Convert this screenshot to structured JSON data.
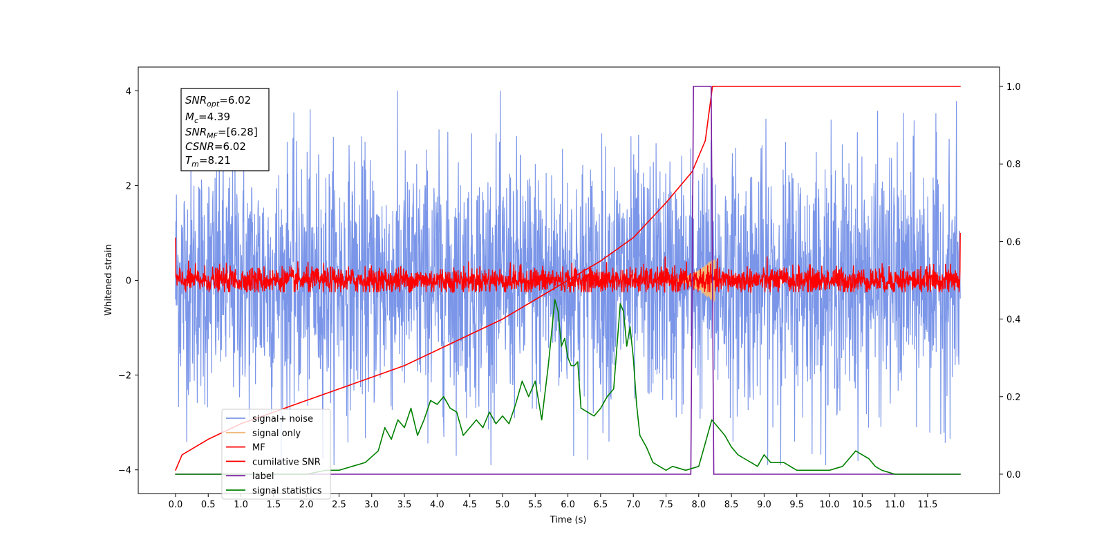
{
  "chart_data": {
    "type": "line",
    "xlabel": "Time (s)",
    "ylabel": "Whitened strain",
    "xlim": [
      -0.57,
      12.6
    ],
    "ylim_left": [
      -4.5,
      4.5
    ],
    "ylim_right": [
      -0.05,
      1.05
    ],
    "x_ticks": [
      "0.0",
      "0.5",
      "1.0",
      "1.5",
      "2.0",
      "2.5",
      "3.0",
      "3.5",
      "4.0",
      "4.5",
      "5.0",
      "5.5",
      "6.0",
      "6.5",
      "7.0",
      "7.5",
      "8.0",
      "8.5",
      "9.0",
      "9.5",
      "10.0",
      "10.5",
      "11.0",
      "11.5"
    ],
    "y_ticks_left": [
      "−4",
      "−2",
      "0",
      "2",
      "4"
    ],
    "y_ticks_right": [
      "0.0",
      "0.2",
      "0.4",
      "0.6",
      "0.8",
      "1.0"
    ],
    "legend_location": "lower-left",
    "annotation": {
      "snr_opt_label": "SNR",
      "snr_opt_sub": "opt",
      "snr_opt_value": "=6.02",
      "mc_label": "M",
      "mc_sub": "c",
      "mc_value": "=4.39",
      "snr_mf_label": "SNR",
      "snr_mf_sub": "MF",
      "snr_mf_value": "=[6.28]",
      "csnr_label": "CSNR",
      "csnr_value": "=6.02",
      "tm_label": "T",
      "tm_sub": "m",
      "tm_value": "=8.21"
    },
    "series": [
      {
        "name": "signal+ noise",
        "color": "#7b96e8",
        "axis": "left",
        "description_amplitude_range": [
          -3.9,
          4.0
        ],
        "x_range": [
          0.0,
          12.0
        ]
      },
      {
        "name": "signal only",
        "color": "#f0b87a",
        "axis": "left",
        "x_range": [
          7.5,
          8.25
        ],
        "peak_amplitude": 0.5
      },
      {
        "name": "MF",
        "color": "#ff0000",
        "axis": "left",
        "x_range": [
          0.0,
          12.0
        ],
        "amplitude_range": [
          -0.3,
          0.6
        ]
      },
      {
        "name": "cumilative SNR",
        "color": "#ff0000",
        "axis": "right",
        "x": [
          0.0,
          0.1,
          0.5,
          1.0,
          1.5,
          2.0,
          2.5,
          3.0,
          3.5,
          4.0,
          4.5,
          5.0,
          5.5,
          6.0,
          6.5,
          7.0,
          7.5,
          7.9,
          8.1,
          8.21,
          12.0
        ],
        "y": [
          0.01,
          0.05,
          0.09,
          0.13,
          0.16,
          0.19,
          0.22,
          0.25,
          0.28,
          0.32,
          0.36,
          0.4,
          0.45,
          0.5,
          0.55,
          0.61,
          0.7,
          0.78,
          0.86,
          1.0,
          1.0
        ]
      },
      {
        "name": "label",
        "color": "#7b1fa2",
        "axis": "right",
        "x": [
          0.0,
          7.88,
          7.92,
          8.19,
          8.23,
          12.0
        ],
        "y": [
          0.0,
          0.0,
          1.0,
          1.0,
          0.0,
          0.0
        ]
      },
      {
        "name": "signal statistics",
        "color": "#008000",
        "axis": "right",
        "x": [
          0.0,
          0.5,
          1.0,
          1.5,
          2.0,
          2.3,
          2.5,
          2.7,
          2.9,
          3.1,
          3.2,
          3.3,
          3.4,
          3.5,
          3.6,
          3.7,
          3.8,
          3.9,
          4.0,
          4.1,
          4.2,
          4.3,
          4.4,
          4.5,
          4.6,
          4.7,
          4.8,
          4.9,
          5.0,
          5.1,
          5.2,
          5.3,
          5.4,
          5.5,
          5.6,
          5.7,
          5.8,
          5.85,
          5.9,
          5.95,
          6.0,
          6.05,
          6.1,
          6.15,
          6.2,
          6.3,
          6.4,
          6.5,
          6.6,
          6.7,
          6.8,
          6.85,
          6.9,
          6.95,
          7.0,
          7.05,
          7.1,
          7.2,
          7.3,
          7.4,
          7.5,
          7.6,
          7.8,
          8.0,
          8.1,
          8.2,
          8.3,
          8.4,
          8.5,
          8.6,
          8.7,
          8.8,
          8.9,
          9.0,
          9.1,
          9.2,
          9.3,
          9.4,
          9.5,
          9.6,
          9.8,
          10.0,
          10.2,
          10.3,
          10.4,
          10.5,
          10.6,
          10.7,
          10.8,
          11.0,
          11.5,
          12.0
        ],
        "y": [
          0.0,
          0.0,
          0.0,
          0.0,
          0.0,
          0.01,
          0.01,
          0.02,
          0.03,
          0.06,
          0.12,
          0.09,
          0.14,
          0.12,
          0.17,
          0.1,
          0.14,
          0.19,
          0.18,
          0.2,
          0.17,
          0.16,
          0.1,
          0.12,
          0.14,
          0.12,
          0.16,
          0.13,
          0.15,
          0.13,
          0.18,
          0.24,
          0.2,
          0.24,
          0.14,
          0.28,
          0.45,
          0.42,
          0.33,
          0.35,
          0.3,
          0.28,
          0.28,
          0.29,
          0.17,
          0.16,
          0.15,
          0.17,
          0.2,
          0.22,
          0.44,
          0.42,
          0.33,
          0.38,
          0.3,
          0.18,
          0.1,
          0.07,
          0.03,
          0.02,
          0.01,
          0.02,
          0.01,
          0.02,
          0.08,
          0.14,
          0.12,
          0.1,
          0.07,
          0.05,
          0.04,
          0.03,
          0.02,
          0.05,
          0.03,
          0.03,
          0.03,
          0.02,
          0.01,
          0.01,
          0.01,
          0.01,
          0.02,
          0.04,
          0.06,
          0.05,
          0.04,
          0.02,
          0.01,
          0.0,
          0.0,
          0.0
        ]
      }
    ]
  }
}
